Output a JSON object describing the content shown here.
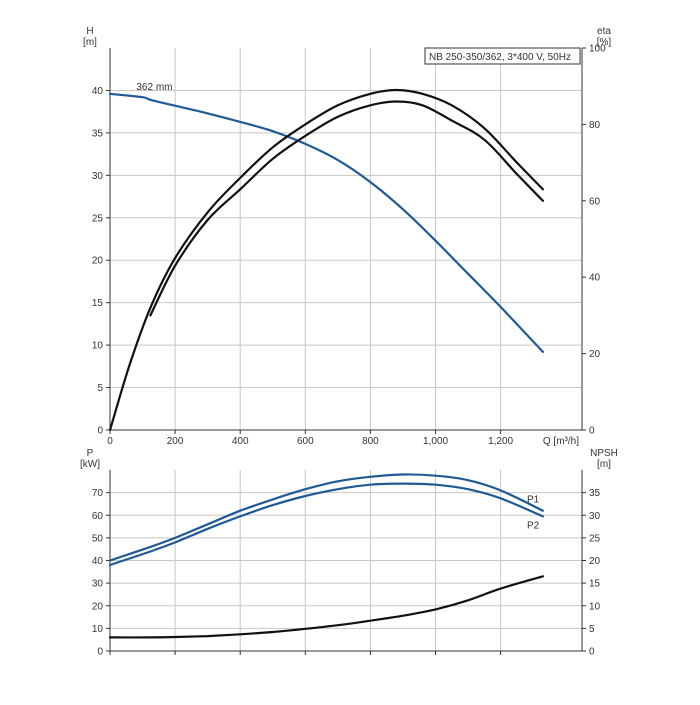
{
  "colors": {
    "blue": "#1f5a96",
    "black": "#111111",
    "grid": "#c8c8c8",
    "axis": "#333333"
  },
  "chart_data": [
    {
      "type": "line",
      "panel": "upper",
      "title": "NB 250-350/362, 3*400 V, 50Hz",
      "xlabel": "Q [m³/h]",
      "ylabel_left": [
        "H",
        "[m]"
      ],
      "ylabel_right": [
        "eta",
        "[%]"
      ],
      "xlim": [
        0,
        1450
      ],
      "ylim_left": [
        0,
        45
      ],
      "ylim_right": [
        0,
        100
      ],
      "x_ticks": [
        0,
        200,
        400,
        600,
        800,
        1000,
        1200
      ],
      "x_tick_labels": [
        "0",
        "200",
        "400",
        "600",
        "800",
        "1,000",
        "1,200"
      ],
      "y_left_ticks": [
        0,
        5,
        10,
        15,
        20,
        25,
        30,
        35,
        40
      ],
      "y_right_ticks": [
        0,
        20,
        40,
        60,
        80,
        100
      ],
      "grid": true,
      "series": [
        {
          "id": "head-curve",
          "axis": "left",
          "color": "blue",
          "label": "362 mm",
          "x": [
            0,
            100,
            124,
            200,
            300,
            400,
            500,
            600,
            700,
            800,
            900,
            1000,
            1100,
            1200,
            1330
          ],
          "y": [
            39.6,
            39.2,
            38.9,
            38.2,
            37.3,
            36.3,
            35.2,
            33.7,
            31.8,
            29.2,
            26.0,
            22.3,
            18.4,
            14.5,
            9.2
          ]
        },
        {
          "id": "efficiency-upper-curve",
          "axis": "right",
          "color": "black",
          "x": [
            0,
            60,
            124,
            200,
            300,
            400,
            500,
            600,
            700,
            800,
            880,
            960,
            1050,
            1150,
            1250,
            1330
          ],
          "y": [
            0,
            17,
            32,
            45,
            57,
            66,
            74,
            80,
            85,
            88,
            89,
            88,
            85,
            79,
            70,
            63
          ]
        },
        {
          "id": "efficiency-lower-curve",
          "axis": "right",
          "color": "black",
          "x": [
            124,
            200,
            300,
            400,
            500,
            600,
            700,
            800,
            880,
            960,
            1050,
            1150,
            1250,
            1330
          ],
          "y": [
            30,
            43,
            55,
            63,
            71,
            77,
            82,
            85,
            86,
            85,
            81,
            76,
            67,
            60
          ]
        }
      ]
    },
    {
      "type": "line",
      "panel": "lower",
      "xlabel": "",
      "ylabel_left": [
        "P",
        "[kW]"
      ],
      "ylabel_right": [
        "NPSH",
        "[m]"
      ],
      "xlim": [
        0,
        1450
      ],
      "ylim_left": [
        0,
        80
      ],
      "ylim_right": [
        0,
        40
      ],
      "y_left_ticks": [
        0,
        10,
        20,
        30,
        40,
        50,
        60,
        70
      ],
      "y_right_ticks": [
        0,
        5,
        10,
        15,
        20,
        25,
        30,
        35
      ],
      "grid": true,
      "series": [
        {
          "id": "p1-curve",
          "name": "P1",
          "axis": "left",
          "color": "blue",
          "x": [
            0,
            124,
            200,
            300,
            400,
            500,
            600,
            700,
            800,
            900,
            1000,
            1100,
            1200,
            1330
          ],
          "y": [
            40,
            46,
            50,
            56,
            62,
            67,
            71.5,
            75,
            77,
            78,
            77.5,
            75.5,
            71,
            62
          ]
        },
        {
          "id": "p2-curve",
          "name": "P2",
          "axis": "left",
          "color": "blue",
          "x": [
            0,
            124,
            200,
            300,
            400,
            500,
            600,
            700,
            800,
            900,
            1000,
            1100,
            1200,
            1330
          ],
          "y": [
            38,
            44,
            48,
            54,
            59.5,
            64.5,
            68.5,
            71.5,
            73.5,
            74,
            73.5,
            71.5,
            67.5,
            59.5
          ]
        },
        {
          "id": "npsh-curve",
          "name": "NPSH",
          "axis": "right",
          "color": "black",
          "x": [
            0,
            124,
            200,
            300,
            400,
            500,
            600,
            700,
            800,
            900,
            1000,
            1100,
            1200,
            1330
          ],
          "y": [
            3,
            3,
            3.1,
            3.3,
            3.7,
            4.2,
            4.9,
            5.7,
            6.7,
            7.8,
            9.2,
            11.2,
            13.8,
            16.5
          ]
        }
      ]
    }
  ]
}
